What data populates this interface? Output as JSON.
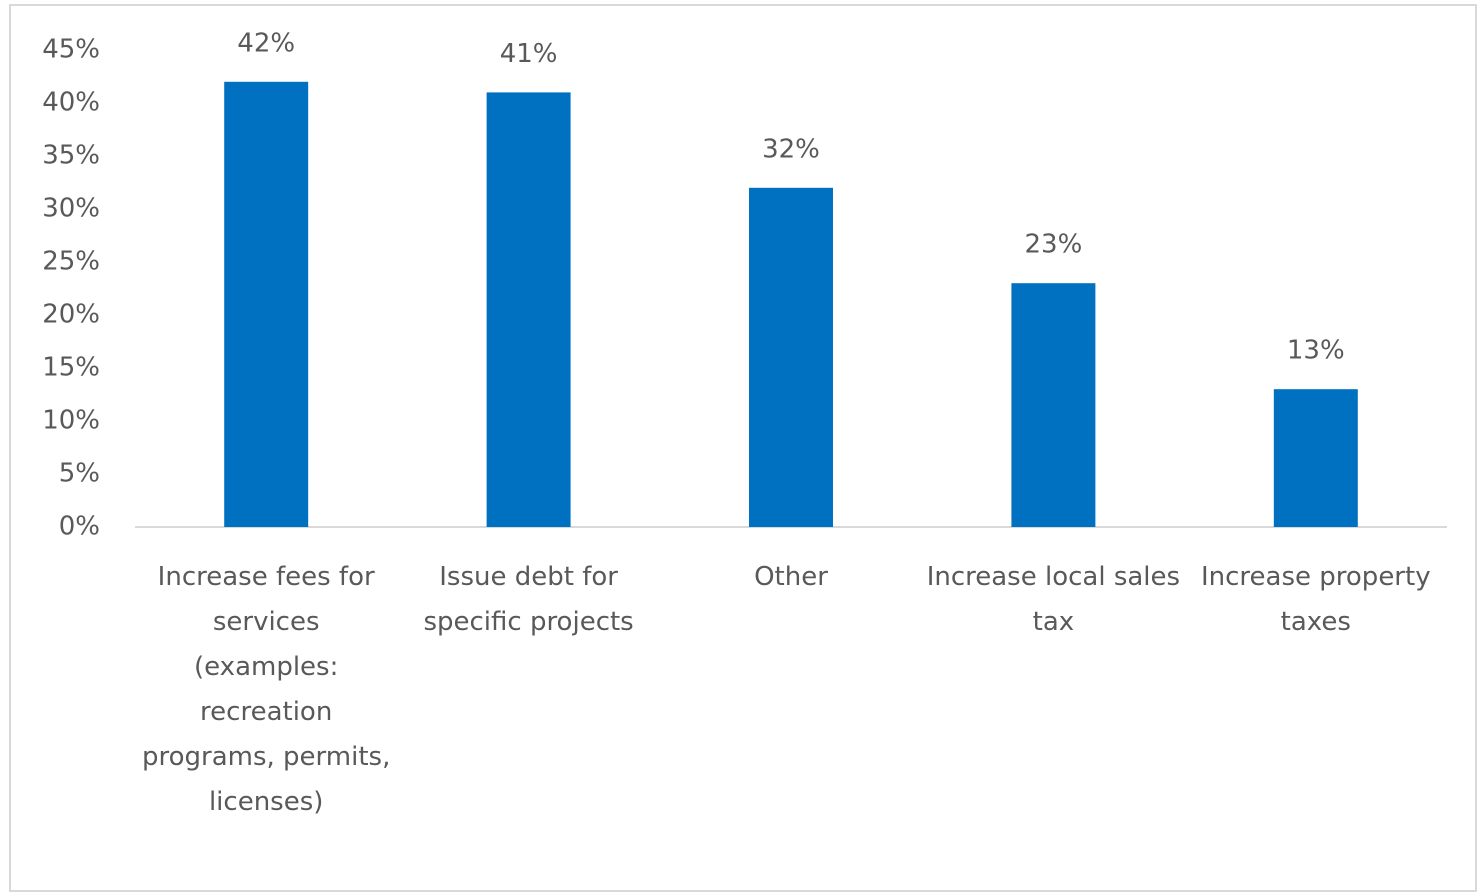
{
  "chart_data": {
    "type": "bar",
    "categories": [
      "Increase fees for services (examples: recreation programs, permits, licenses)",
      "Issue debt for specific projects",
      "Other",
      "Increase local sales tax",
      "Increase property taxes"
    ],
    "values": [
      42,
      41,
      32,
      23,
      13
    ],
    "value_labels": [
      "42%",
      "41%",
      "32%",
      "23%",
      "13%"
    ],
    "color": "#0070c0",
    "ylim": [
      0,
      45
    ],
    "yticks": [
      {
        "value": 0,
        "label": "0%"
      },
      {
        "value": 5,
        "label": "5%"
      },
      {
        "value": 10,
        "label": "10%"
      },
      {
        "value": 15,
        "label": "15%"
      },
      {
        "value": 20,
        "label": "20%"
      },
      {
        "value": 25,
        "label": "25%"
      },
      {
        "value": 30,
        "label": "30%"
      },
      {
        "value": 35,
        "label": "35%"
      },
      {
        "value": 40,
        "label": "40%"
      },
      {
        "value": 45,
        "label": "45%"
      }
    ],
    "grid": false
  }
}
